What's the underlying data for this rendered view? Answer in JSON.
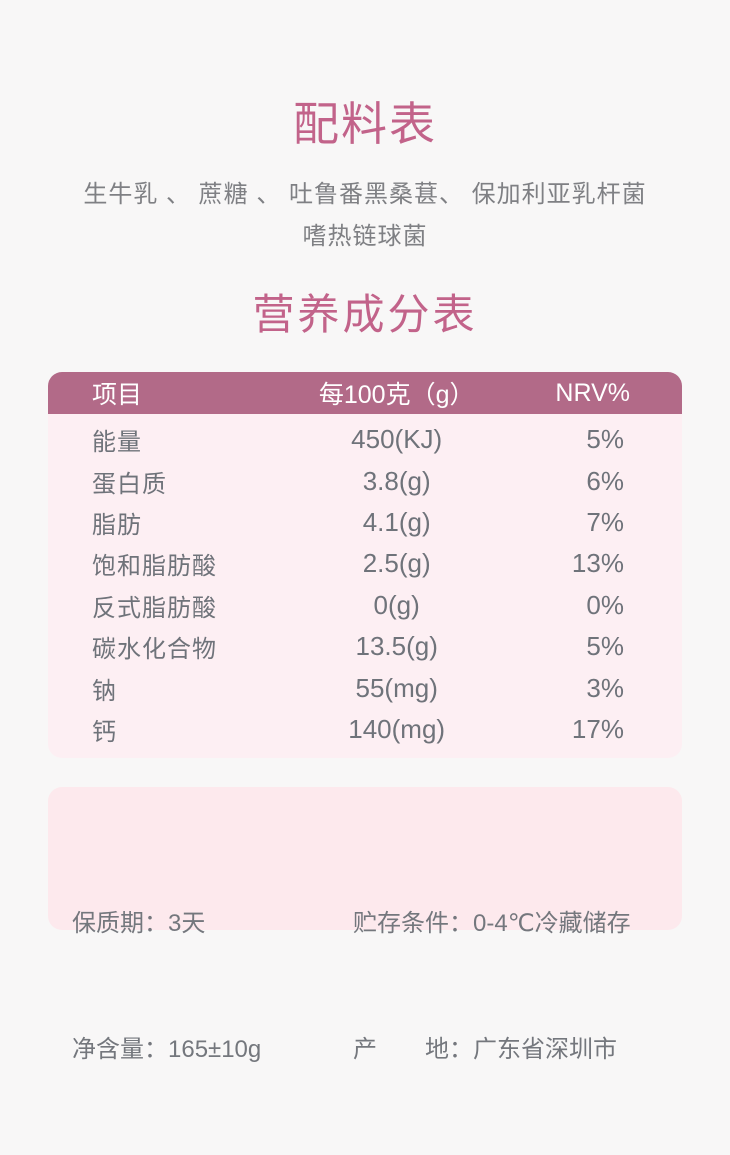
{
  "colors": {
    "page_background": "#f8f7f7",
    "accent_pink": "#c2638a",
    "table_header_bg": "#b26a88",
    "table_header_text": "#ffffff",
    "table_body_bg": "#fdeff3",
    "info_box_bg": "#fde9ed",
    "body_text_gray": "#6f737a"
  },
  "ingredients": {
    "title": "配料表",
    "line1": "生牛乳 、 蔗糖 、 吐鲁番黑桑葚、 保加利亚乳杆菌",
    "line2": "嗜热链球菌"
  },
  "nutrition": {
    "title": "营养成分表",
    "header": {
      "item": "项目",
      "per100g": "每100克（g）",
      "nrv": "NRV%"
    },
    "rows": [
      {
        "item": "能量",
        "value": "450(KJ)",
        "nrv": "5%"
      },
      {
        "item": "蛋白质",
        "value": "3.8(g)",
        "nrv": "6%"
      },
      {
        "item": "脂肪",
        "value": "4.1(g)",
        "nrv": "7%"
      },
      {
        "item": "饱和脂肪酸",
        "value": "2.5(g)",
        "nrv": "13%"
      },
      {
        "item": "反式脂肪酸",
        "value": "0(g)",
        "nrv": "0%"
      },
      {
        "item": "碳水化合物",
        "value": "13.5(g)",
        "nrv": "5%"
      },
      {
        "item": "钠",
        "value": "55(mg)",
        "nrv": "3%"
      },
      {
        "item": "钙",
        "value": "140(mg)",
        "nrv": "17%"
      }
    ]
  },
  "info": {
    "left": [
      "保质期：3天",
      "净含量：165±10g"
    ],
    "right": [
      "贮存条件：0-4℃冷藏储存",
      "产　　地：广东省深圳市"
    ]
  }
}
